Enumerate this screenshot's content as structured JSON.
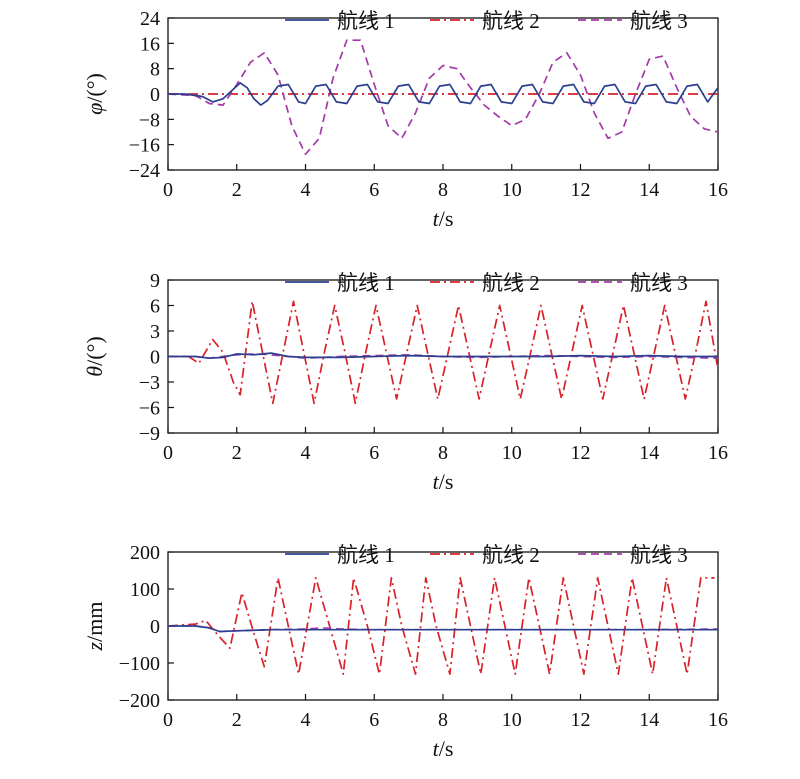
{
  "colors": {
    "series1": "#2b3f8f",
    "series2": "#d9212a",
    "series3": "#a43aa8"
  },
  "chart_data": [
    {
      "type": "line",
      "id": "phi",
      "xlabel": {
        "var": "t",
        "unit": "/s"
      },
      "ylabel": {
        "var": "φ",
        "unit": "/(°)"
      },
      "xlim": [
        0,
        16
      ],
      "ylim": [
        -24,
        24
      ],
      "xticks": [
        "0",
        "2",
        "4",
        "6",
        "8",
        "10",
        "12",
        "14",
        "16"
      ],
      "yticks": [
        "24",
        "16",
        "8",
        "0",
        "−8",
        "−16",
        "−24"
      ],
      "legend_position": "top",
      "series": [
        {
          "name": "航线 1",
          "style": "solid",
          "x": [
            0,
            0.5,
            1.0,
            1.3,
            1.6,
            1.9,
            2.1,
            2.3,
            2.5,
            2.7,
            2.9,
            3.2,
            3.5,
            3.8,
            4.0,
            4.3,
            4.6,
            4.9,
            5.2,
            5.5,
            5.8,
            6.1,
            6.4,
            6.7,
            7.0,
            7.3,
            7.6,
            7.9,
            8.2,
            8.5,
            8.8,
            9.1,
            9.4,
            9.7,
            10.0,
            10.3,
            10.6,
            10.9,
            11.2,
            11.5,
            11.8,
            12.1,
            12.4,
            12.7,
            13.0,
            13.3,
            13.6,
            13.9,
            14.2,
            14.5,
            14.8,
            15.1,
            15.4,
            15.7,
            16.0
          ],
          "y": [
            0,
            0,
            -0.8,
            -2.5,
            -1.5,
            1.5,
            3.5,
            2.0,
            -1.5,
            -3.5,
            -2.0,
            2.5,
            3.0,
            -2.5,
            -3.0,
            2.5,
            3.0,
            -2.5,
            -3.0,
            2.5,
            3.0,
            -2.5,
            -3.0,
            2.5,
            3.0,
            -2.5,
            -3.0,
            2.5,
            3.0,
            -2.5,
            -3.0,
            2.5,
            3.0,
            -2.5,
            -3.0,
            2.5,
            3.0,
            -2.5,
            -3.0,
            2.5,
            3.0,
            -2.5,
            -3.0,
            2.5,
            3.0,
            -2.5,
            -3.0,
            2.5,
            3.0,
            -2.5,
            -3.0,
            2.5,
            3.0,
            -2.5,
            2.0
          ]
        },
        {
          "name": "航线 2",
          "style": "dashdot",
          "x": [
            0,
            16
          ],
          "y": [
            0,
            0
          ]
        },
        {
          "name": "航线 3",
          "style": "dashed",
          "x": [
            0,
            0.8,
            1.2,
            1.6,
            2.0,
            2.4,
            2.8,
            3.2,
            3.6,
            4.0,
            4.4,
            4.8,
            5.2,
            5.6,
            6.0,
            6.4,
            6.8,
            7.2,
            7.6,
            8.0,
            8.4,
            8.8,
            9.2,
            9.6,
            10.0,
            10.4,
            10.8,
            11.2,
            11.6,
            12.0,
            12.4,
            12.8,
            13.2,
            13.6,
            14.0,
            14.4,
            14.8,
            15.2,
            15.6,
            16.0
          ],
          "y": [
            0,
            -0.5,
            -3.0,
            -3.5,
            3.0,
            10.0,
            13.0,
            6.0,
            -10.0,
            -19.0,
            -14.0,
            5.0,
            17.0,
            17.0,
            3.0,
            -10.0,
            -14.0,
            -6.0,
            5.0,
            9.0,
            8.0,
            2.0,
            -3.5,
            -7.0,
            -10.0,
            -8.0,
            0.0,
            10.0,
            13.0,
            6.0,
            -6.0,
            -14.0,
            -12.0,
            0.0,
            11.0,
            12.0,
            2.0,
            -7.0,
            -11.0,
            -12.0
          ]
        }
      ]
    },
    {
      "type": "line",
      "id": "theta",
      "xlabel": {
        "var": "t",
        "unit": "/s"
      },
      "ylabel": {
        "var": "θ",
        "unit": "/(°)"
      },
      "xlim": [
        0,
        16
      ],
      "ylim": [
        -9,
        9
      ],
      "xticks": [
        "0",
        "2",
        "4",
        "6",
        "8",
        "10",
        "12",
        "14",
        "16"
      ],
      "yticks": [
        "9",
        "6",
        "3",
        "0",
        "−3",
        "−6",
        "−9"
      ],
      "legend_position": "top",
      "series": [
        {
          "name": "航线 1",
          "style": "solid",
          "x": [
            0,
            0.8,
            1.2,
            1.6,
            2.0,
            2.5,
            3.0,
            3.5,
            4.0,
            5.0,
            6.0,
            7.0,
            8.0,
            9.0,
            10.0,
            11.0,
            12.0,
            13.0,
            14.0,
            15.0,
            16.0
          ],
          "y": [
            0,
            0,
            -0.2,
            -0.1,
            0.3,
            0.2,
            0.4,
            0.0,
            -0.1,
            -0.1,
            0.0,
            0.1,
            0.0,
            0.0,
            0.0,
            0.0,
            0.1,
            0.0,
            0.1,
            0.0,
            0.0
          ]
        },
        {
          "name": "航线 2",
          "style": "dashdot",
          "x": [
            0,
            0.6,
            0.9,
            1.3,
            1.6,
            1.9,
            2.1,
            2.45,
            2.75,
            3.05,
            3.35,
            3.65,
            3.95,
            4.25,
            4.55,
            4.85,
            5.15,
            5.45,
            5.75,
            6.05,
            6.35,
            6.65,
            6.95,
            7.25,
            7.55,
            7.85,
            8.15,
            8.45,
            8.75,
            9.05,
            9.35,
            9.65,
            9.95,
            10.25,
            10.55,
            10.85,
            11.15,
            11.45,
            11.75,
            12.05,
            12.35,
            12.65,
            12.95,
            13.25,
            13.55,
            13.85,
            14.15,
            14.45,
            14.75,
            15.05,
            15.35,
            15.65,
            16.0
          ],
          "y": [
            0,
            0,
            -0.8,
            2.0,
            0.5,
            -3.0,
            -4.5,
            6.5,
            0.5,
            -5.5,
            0.5,
            6.5,
            0.5,
            -5.5,
            0.5,
            6.0,
            0.5,
            -5.5,
            0.5,
            6.0,
            0.5,
            -5.0,
            0.5,
            6.0,
            0.5,
            -5.0,
            0.5,
            6.0,
            0.5,
            -5.0,
            0.5,
            6.0,
            0.5,
            -5.0,
            0.5,
            6.0,
            0.5,
            -5.0,
            0.5,
            6.0,
            0.5,
            -5.0,
            0.5,
            6.0,
            0.5,
            -5.0,
            0.5,
            6.0,
            0.5,
            -5.0,
            0.5,
            6.5,
            -1.5
          ]
        },
        {
          "name": "航线 3",
          "style": "dashed",
          "x": [
            0,
            0.8,
            1.2,
            1.6,
            2.0,
            2.5,
            3.0,
            3.5,
            4.0,
            5.0,
            6.0,
            7.0,
            8.0,
            9.0,
            10.0,
            11.0,
            12.0,
            13.0,
            14.0,
            15.0,
            16.0
          ],
          "y": [
            0,
            0,
            -0.2,
            0.0,
            0.2,
            0.3,
            0.2,
            0.0,
            -0.2,
            0.0,
            0.1,
            0.2,
            0.0,
            -0.1,
            0.0,
            0.1,
            0.0,
            -0.1,
            0.0,
            -0.1,
            -0.2
          ]
        }
      ]
    },
    {
      "type": "line",
      "id": "z",
      "xlabel": {
        "var": "t",
        "unit": "/s"
      },
      "ylabel": {
        "var": "z",
        "unit": "/mm"
      },
      "xlim": [
        0,
        16
      ],
      "ylim": [
        -200,
        200
      ],
      "xticks": [
        "0",
        "2",
        "4",
        "6",
        "8",
        "10",
        "12",
        "14",
        "16"
      ],
      "yticks": [
        "200",
        "100",
        "0",
        "−100",
        "−200"
      ],
      "legend_position": "top",
      "series": [
        {
          "name": "航线 1",
          "style": "solid",
          "x": [
            0,
            0.8,
            1.2,
            1.5,
            2.0,
            3.0,
            4.0,
            5.0,
            6.0,
            8.0,
            10.0,
            12.0,
            14.0,
            16.0
          ],
          "y": [
            0,
            0,
            -5,
            -15,
            -13,
            -10,
            -10,
            -10,
            -10,
            -10,
            -10,
            -10,
            -10,
            -10
          ]
        },
        {
          "name": "航线 2",
          "style": "dashdot",
          "x": [
            0,
            0.8,
            1.1,
            1.5,
            1.8,
            2.15,
            2.5,
            2.8,
            3.2,
            3.5,
            3.8,
            4.3,
            4.7,
            5.1,
            5.4,
            5.8,
            6.15,
            6.5,
            6.8,
            7.2,
            7.5,
            7.8,
            8.2,
            8.5,
            8.8,
            9.1,
            9.5,
            9.8,
            10.1,
            10.5,
            10.8,
            11.1,
            11.5,
            11.8,
            12.1,
            12.5,
            12.8,
            13.1,
            13.5,
            13.8,
            14.1,
            14.5,
            14.8,
            15.1,
            15.5,
            15.9
          ],
          "y": [
            0,
            5,
            15,
            -30,
            -60,
            90,
            -20,
            -110,
            130,
            0,
            -130,
            130,
            0,
            -130,
            130,
            0,
            -130,
            130,
            0,
            -130,
            130,
            0,
            -130,
            130,
            0,
            -130,
            130,
            0,
            -130,
            130,
            0,
            -130,
            130,
            0,
            -130,
            130,
            0,
            -130,
            130,
            0,
            -130,
            130,
            0,
            -130,
            130,
            130
          ]
        },
        {
          "name": "航线 3",
          "style": "dashed",
          "x": [
            0,
            0.8,
            1.2,
            1.5,
            2.0,
            3.0,
            4.0,
            4.5,
            5.0,
            6.0,
            8.0,
            10.0,
            12.0,
            14.0,
            16.0
          ],
          "y": [
            0,
            0,
            -5,
            -15,
            -13,
            -10,
            -8,
            -5,
            -8,
            -10,
            -10,
            -10,
            -10,
            -10,
            -8
          ]
        }
      ]
    }
  ]
}
